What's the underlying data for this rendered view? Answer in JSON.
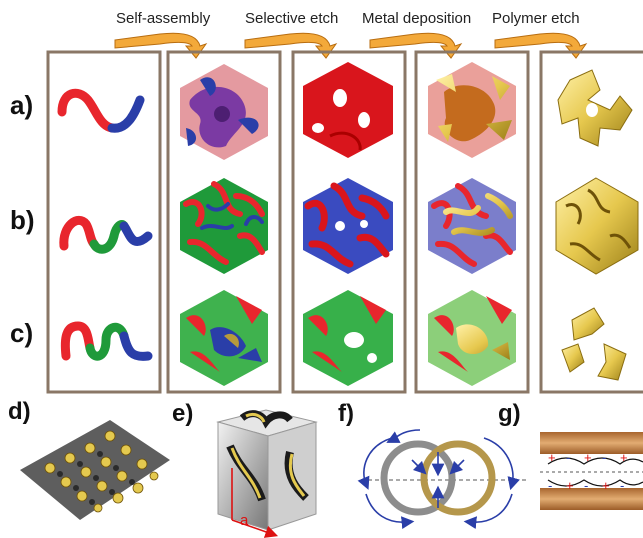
{
  "steps": {
    "s1": "Self-assembly",
    "s2": "Selective etch",
    "s3": "Metal deposition",
    "s4": "Polymer etch"
  },
  "rows": {
    "a": "a)",
    "b": "b)",
    "c": "c)"
  },
  "panels": {
    "d": "d)",
    "e": "e)",
    "f": "f)",
    "g": "g)"
  },
  "annotation": {
    "a": "a"
  },
  "charges": [
    "+",
    "-",
    "+",
    "-",
    "+",
    "-",
    "+",
    "-",
    "+",
    "-"
  ],
  "colors": {
    "red": "#e8262d",
    "blue": "#2a3ea8",
    "green": "#1f9a3a",
    "gold": "#e9cf5a",
    "arrow": "#f3a93a",
    "frame": "#8a7766",
    "copper": "#c98a4e"
  }
}
